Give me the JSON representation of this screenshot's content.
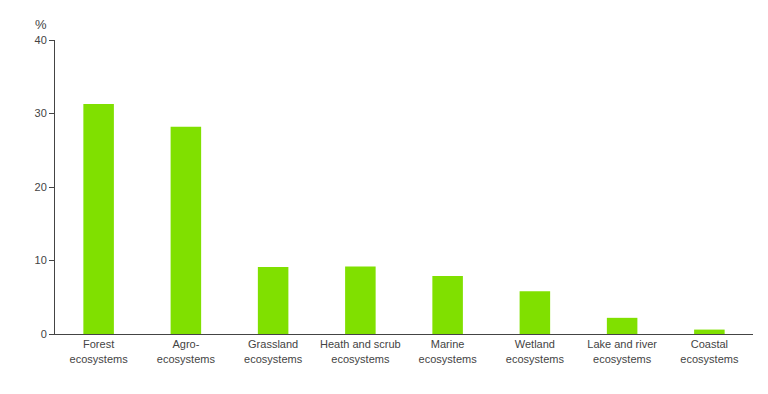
{
  "chart_data": {
    "type": "bar",
    "categories": [
      "Forest\necosystems",
      "Agro-\necosystems",
      "Grassland\necosystems",
      "Heath and scrub\necosystems",
      "Marine\necosystems",
      "Wetland\necosystems",
      "Lake and river\necosystems",
      "Coastal\necosystems"
    ],
    "values": [
      31.3,
      28.2,
      9.1,
      9.2,
      7.9,
      5.8,
      2.2,
      0.6
    ],
    "color": "#80e000",
    "ylabel": "%",
    "ylim": [
      0,
      40
    ],
    "yticks": [
      0,
      10,
      20,
      30,
      40
    ],
    "grid": false
  }
}
